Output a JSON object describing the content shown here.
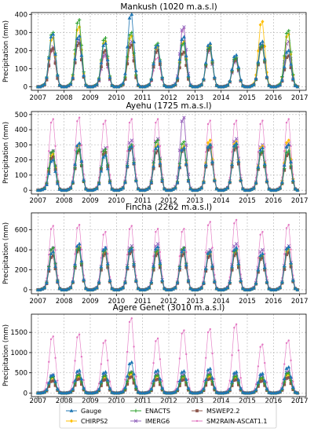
{
  "figure": {
    "legend": {
      "placement": "bottom-center",
      "entries": [
        {
          "name": "Gauge",
          "color": "#1f77b4",
          "marker": "triangle"
        },
        {
          "name": "ENACTS",
          "color": "#2ca02c",
          "marker": "plus"
        },
        {
          "name": "MSWEP2.2",
          "color": "#8c564b",
          "marker": "square"
        },
        {
          "name": "CHIRPS2",
          "color": "#ffbf00",
          "marker": "diamond"
        },
        {
          "name": "IMERG6",
          "color": "#9467bd",
          "marker": "x"
        },
        {
          "name": "SM2RAIN-ASCAT1.1",
          "color": "#e377c2",
          "marker": "dot"
        }
      ]
    }
  },
  "chart_data": [
    {
      "type": "line",
      "title": "Mankush (1020 m.a.s.l)",
      "xlabel": "",
      "ylabel": "Precipitation (mm)",
      "xlim": [
        2006.75,
        2017.25
      ],
      "ylim": [
        -20,
        410
      ],
      "yticks": [
        0,
        100,
        200,
        300,
        400
      ],
      "xticks": [
        2007,
        2008,
        2009,
        2010,
        2011,
        2012,
        2013,
        2014,
        2015,
        2016,
        2017
      ],
      "grid": true,
      "seasonal_peaks": {
        "years": [
          2007,
          2008,
          2009,
          2010,
          2011,
          2012,
          2013,
          2014,
          2015,
          2016
        ],
        "Gauge": [
          290,
          280,
          240,
          400,
          230,
          275,
          240,
          175,
          250,
          200
        ],
        "ENACTS": [
          300,
          370,
          270,
          300,
          240,
          240,
          220,
          160,
          230,
          310
        ],
        "MSWEP2.2": [
          210,
          240,
          200,
          230,
          200,
          190,
          210,
          150,
          220,
          170
        ],
        "CHIRPS2": [
          270,
          330,
          250,
          280,
          220,
          250,
          230,
          160,
          360,
          290
        ],
        "IMERG6": [
          220,
          260,
          180,
          250,
          200,
          330,
          200,
          140,
          230,
          250
        ],
        "SM2RAIN-ASCAT1.1": [
          200,
          240,
          170,
          230,
          160,
          320,
          220,
          150,
          250,
          200
        ]
      }
    },
    {
      "type": "line",
      "title": "Ayehu (1725 m.a.s.l)",
      "xlabel": "",
      "ylabel": "Precipitation (mm)",
      "xlim": [
        2006.75,
        2017.25
      ],
      "ylim": [
        -25,
        520
      ],
      "yticks": [
        0,
        100,
        200,
        300,
        400,
        500
      ],
      "xticks": [
        2007,
        2008,
        2009,
        2010,
        2011,
        2012,
        2013,
        2014,
        2015,
        2016,
        2017
      ],
      "grid": true,
      "seasonal_peaks": {
        "years": [
          2007,
          2008,
          2009,
          2010,
          2011,
          2012,
          2013,
          2014,
          2015,
          2016
        ],
        "Gauge": [
          200,
          310,
          230,
          290,
          290,
          280,
          300,
          310,
          280,
          300
        ],
        "ENACTS": [
          260,
          270,
          270,
          300,
          330,
          320,
          300,
          300,
          260,
          260
        ],
        "MSWEP2.2": [
          220,
          260,
          250,
          280,
          260,
          270,
          280,
          280,
          250,
          240
        ],
        "CHIRPS2": [
          240,
          300,
          250,
          290,
          300,
          290,
          330,
          320,
          290,
          330
        ],
        "IMERG6": [
          260,
          300,
          280,
          330,
          340,
          480,
          300,
          340,
          300,
          310
        ],
        "SM2RAIN-ASCAT1.1": [
          470,
          480,
          460,
          470,
          470,
          480,
          460,
          460,
          460,
          470
        ]
      }
    },
    {
      "type": "line",
      "title": "Fincha (2262 m.a.s.l)",
      "xlabel": "",
      "ylabel": "Precipitation (mm)",
      "xlim": [
        2006.75,
        2017.25
      ],
      "ylim": [
        -40,
        770
      ],
      "yticks": [
        0,
        200,
        400,
        600
      ],
      "xticks": [
        2007,
        2008,
        2009,
        2010,
        2011,
        2012,
        2013,
        2014,
        2015,
        2016,
        2017
      ],
      "grid": true,
      "seasonal_peaks": {
        "years": [
          2007,
          2008,
          2009,
          2010,
          2011,
          2012,
          2013,
          2014,
          2015,
          2016
        ],
        "Gauge": [
          380,
          460,
          420,
          410,
          430,
          400,
          380,
          420,
          360,
          430
        ],
        "ENACTS": [
          420,
          420,
          400,
          420,
          400,
          420,
          380,
          400,
          350,
          420
        ],
        "MSWEP2.2": [
          340,
          400,
          360,
          380,
          360,
          360,
          340,
          360,
          320,
          370
        ],
        "CHIRPS2": [
          380,
          430,
          380,
          400,
          390,
          390,
          360,
          390,
          340,
          400
        ],
        "IMERG6": [
          420,
          440,
          420,
          440,
          460,
          420,
          400,
          460,
          400,
          440
        ],
        "SM2RAIN-ASCAT1.1": [
          640,
          650,
          580,
          640,
          610,
          610,
          680,
          700,
          580,
          650
        ]
      }
    },
    {
      "type": "line",
      "title": "Agere Genet (3010 m.a.s.l)",
      "xlabel": "",
      "ylabel": "Precipitation (mm)",
      "xlim": [
        2006.75,
        2017.25
      ],
      "ylim": [
        -90,
        1950
      ],
      "yticks": [
        0,
        500,
        1000,
        1500
      ],
      "xticks": [
        2007,
        2008,
        2009,
        2010,
        2011,
        2012,
        2013,
        2014,
        2015,
        2016,
        2017
      ],
      "grid": true,
      "seasonal_peaks": {
        "years": [
          2007,
          2008,
          2009,
          2010,
          2011,
          2012,
          2013,
          2014,
          2015,
          2016
        ],
        "Gauge": [
          450,
          560,
          520,
          760,
          560,
          540,
          600,
          520,
          480,
          640
        ],
        "ENACTS": [
          400,
          450,
          430,
          520,
          440,
          420,
          460,
          420,
          380,
          500
        ],
        "MSWEP2.2": [
          300,
          350,
          330,
          400,
          340,
          330,
          350,
          330,
          300,
          380
        ],
        "CHIRPS2": [
          380,
          420,
          400,
          480,
          420,
          400,
          420,
          400,
          360,
          460
        ],
        "IMERG6": [
          440,
          480,
          460,
          520,
          480,
          460,
          500,
          480,
          440,
          540
        ],
        "SM2RAIN-ASCAT1.1": [
          1400,
          1450,
          1300,
          1850,
          1350,
          1550,
          1580,
          1700,
          1200,
          1300
        ]
      }
    }
  ]
}
